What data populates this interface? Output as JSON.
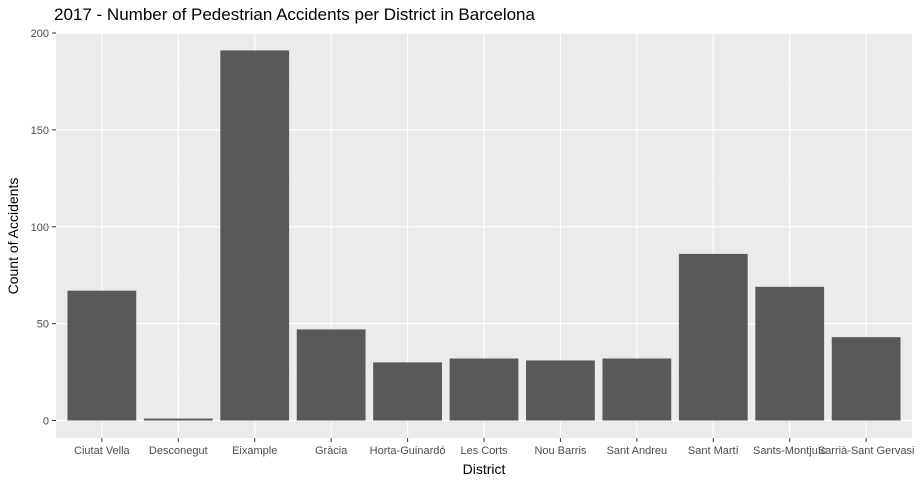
{
  "chart_data": {
    "type": "bar",
    "title": "2017 - Number of Pedestrian Accidents per District in Barcelona",
    "xlabel": "District",
    "ylabel": "Count of Accidents",
    "categories": [
      "Ciutat Vella",
      "Desconegut",
      "Eixample",
      "Gràcia",
      "Horta-Guinardó",
      "Les Corts",
      "Nou Barris",
      "Sant Andreu",
      "Sant Martí",
      "Sants-Montjuïc",
      "Sarrià-Sant Gervasi"
    ],
    "values": [
      67,
      1,
      191,
      47,
      30,
      32,
      31,
      32,
      86,
      69,
      43
    ],
    "ylim": [
      0,
      200
    ],
    "yticks": [
      0,
      50,
      100,
      150,
      200
    ],
    "grid": true,
    "legend": "none",
    "colors": {
      "bar": "#595959",
      "panel": "#ebebeb",
      "grid_major": "#ffffff",
      "grid_minor": "#f2f2f2",
      "tick_label": "#4d4d4d",
      "tick_mark": "#333333"
    }
  }
}
